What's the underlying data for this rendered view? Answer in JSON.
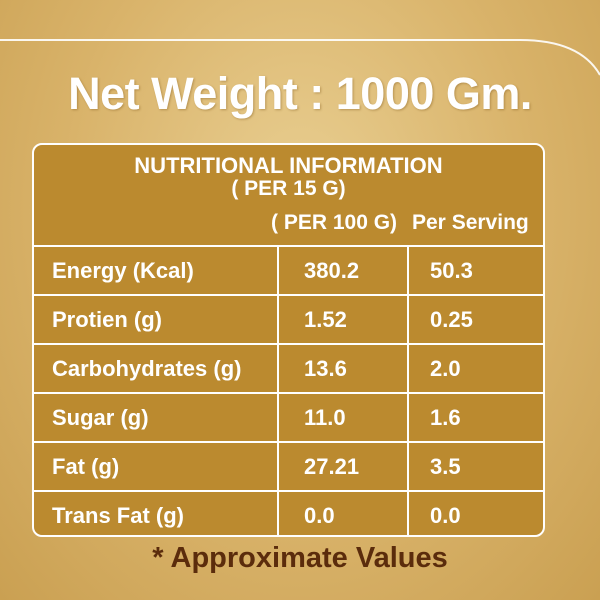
{
  "header": {
    "title": "Net Weight : 1000 Gm."
  },
  "table": {
    "title": "NUTRITIONAL INFORMATION",
    "subtitle": "( PER 15 G)",
    "columns": [
      "( PER 100 G)",
      "Per Serving"
    ],
    "rows": [
      [
        "Energy (Kcal)",
        "380.2",
        "50.3"
      ],
      [
        "Protien (g)",
        "1.52",
        "0.25"
      ],
      [
        "Carbohydrates (g)",
        "13.6",
        "2.0"
      ],
      [
        "Sugar (g)",
        "11.0",
        "1.6"
      ],
      [
        "Fat (g)",
        "27.21",
        "3.5"
      ],
      [
        "Trans Fat (g)",
        "0.0",
        "0.0"
      ]
    ]
  },
  "footer": {
    "note": "* Approximate Values"
  }
}
